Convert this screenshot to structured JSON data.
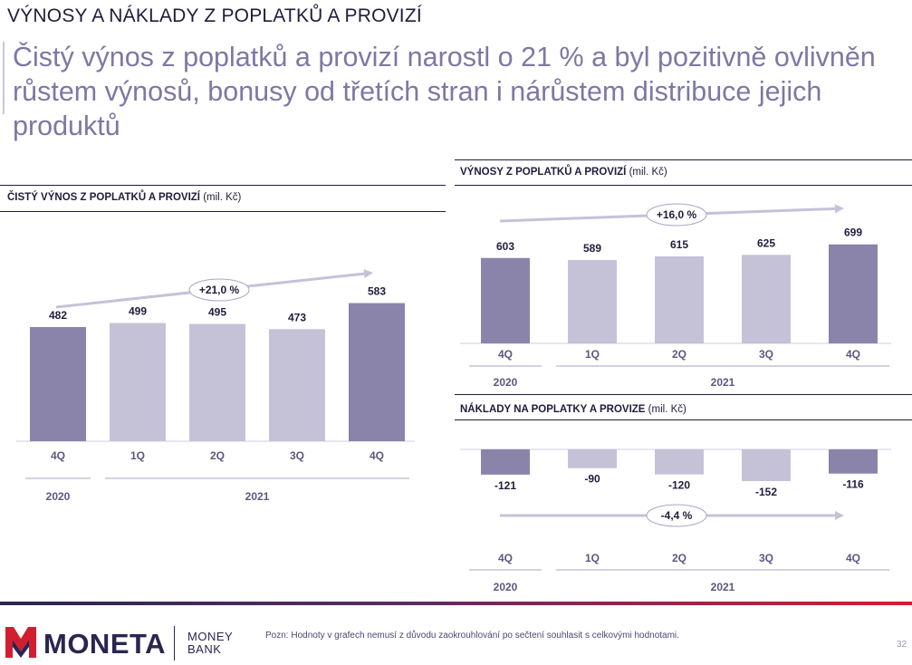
{
  "page": {
    "title": "VÝNOSY A NÁKLADY Z POPLATKŮ A PROVIZÍ",
    "headline": "Čistý výnos z poplatků a provizí narostl o 21 % a byl pozitivně ovlivněn růstem výnosů, bonusy od třetích stran i nárůstem distribuce jejich produktů",
    "footnote": "Pozn: Hodnoty v grafech nemusí z důvodu zaokrouhlování po sečtení souhlasit s celkovými hodnotami.",
    "page_number": "32"
  },
  "brand": {
    "name": "MONETA",
    "sub": "MONEY BANK"
  },
  "colors": {
    "dark_bar": "#8a84aa",
    "light_bar": "#c5c2d8",
    "text": "#1f1d3b",
    "arrow": "#c5c2d8",
    "accent_red": "#d21f2f"
  },
  "chart_data": [
    {
      "id": "net",
      "type": "bar",
      "title": "ČISTÝ VÝNOS Z POPLATKŮ A PROVIZÍ",
      "unit": "(mil. Kč)",
      "categories": [
        "4Q",
        "1Q",
        "2Q",
        "3Q",
        "4Q"
      ],
      "values": [
        482,
        499,
        495,
        473,
        583
      ],
      "years": [
        {
          "label": "2020",
          "span": [
            0,
            0
          ]
        },
        {
          "label": "2021",
          "span": [
            1,
            4
          ]
        }
      ],
      "highlight": [
        0,
        4
      ],
      "trend_label": "+21,0 %"
    },
    {
      "id": "income",
      "type": "bar",
      "title": "VÝNOSY Z POPLATKŮ A PROVIZÍ",
      "unit": "(mil. Kč)",
      "categories": [
        "4Q",
        "1Q",
        "2Q",
        "3Q",
        "4Q"
      ],
      "values": [
        603,
        589,
        615,
        625,
        699
      ],
      "years": [
        {
          "label": "2020",
          "span": [
            0,
            0
          ]
        },
        {
          "label": "2021",
          "span": [
            1,
            4
          ]
        }
      ],
      "highlight": [
        0,
        4
      ],
      "trend_label": "+16,0 %"
    },
    {
      "id": "costs",
      "type": "bar",
      "title": "NÁKLADY NA POPLATKY A PROVIZE",
      "unit": "(mil. Kč)",
      "categories": [
        "4Q",
        "1Q",
        "2Q",
        "3Q",
        "4Q"
      ],
      "values": [
        -121,
        -90,
        -120,
        -152,
        -116
      ],
      "years": [
        {
          "label": "2020",
          "span": [
            0,
            0
          ]
        },
        {
          "label": "2021",
          "span": [
            1,
            4
          ]
        }
      ],
      "highlight": [
        0,
        4
      ],
      "trend_label": "-4,4 %"
    }
  ]
}
